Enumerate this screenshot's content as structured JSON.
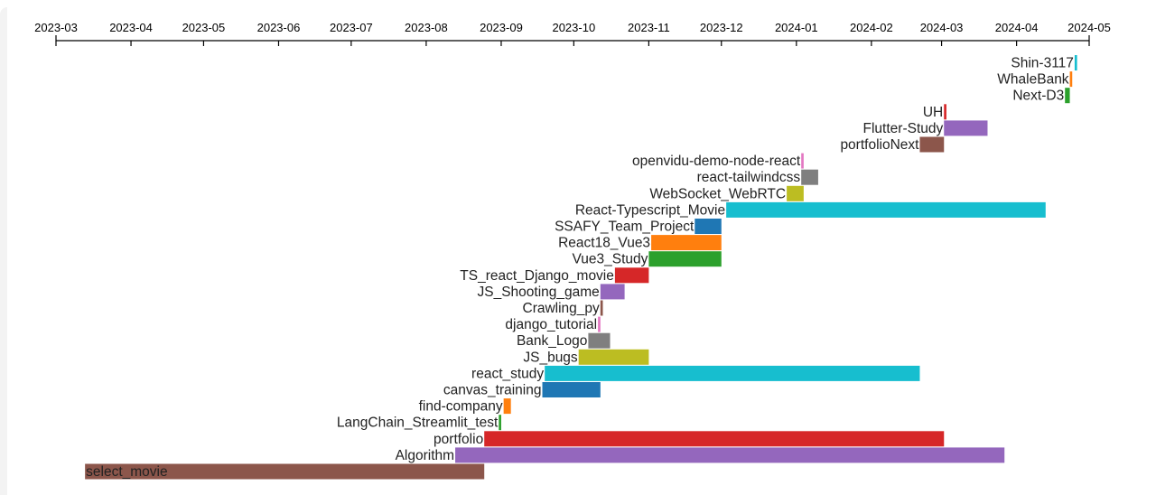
{
  "chart_data": {
    "type": "timeline",
    "x_axis": {
      "position": "top",
      "range": [
        "2023-03",
        "2024-05"
      ],
      "tick_labels": [
        "2023-03",
        "2023-04",
        "2023-05",
        "2023-06",
        "2023-07",
        "2023-08",
        "2023-09",
        "2023-10",
        "2023-11",
        "2023-12",
        "2024-01",
        "2024-02",
        "2024-03",
        "2024-04",
        "2024-05"
      ]
    },
    "grid": false,
    "legend": "none",
    "series": [
      {
        "name": "Shin-3117",
        "start": "2024-04-25",
        "end": "2024-04-26",
        "color": "#17becf"
      },
      {
        "name": "WhaleBank",
        "start": "2024-04-23",
        "end": "2024-04-24",
        "color": "#ff7f0e"
      },
      {
        "name": "Next-D3",
        "start": "2024-04-21",
        "end": "2024-04-23",
        "color": "#2ca02c"
      },
      {
        "name": "UH",
        "start": "2024-03-02",
        "end": "2024-03-03",
        "color": "#d62728"
      },
      {
        "name": "Flutter-Study",
        "start": "2024-03-02",
        "end": "2024-03-20",
        "color": "#9467bd"
      },
      {
        "name": "portfolioNext",
        "start": "2024-02-21",
        "end": "2024-03-02",
        "color": "#8c564b"
      },
      {
        "name": "openvidu-demo-node-react",
        "start": "2024-01-03",
        "end": "2024-01-04",
        "color": "#e377c2"
      },
      {
        "name": "react-tailwindcss",
        "start": "2024-01-03",
        "end": "2024-01-10",
        "color": "#7f7f7f"
      },
      {
        "name": "WebSocket_WebRTC",
        "start": "2023-12-28",
        "end": "2024-01-04",
        "color": "#bcbd22"
      },
      {
        "name": "React-Typescript_Movie",
        "start": "2023-12-03",
        "end": "2024-04-13",
        "color": "#17becf"
      },
      {
        "name": "SSAFY_Team_Project",
        "start": "2023-11-20",
        "end": "2023-12-01",
        "color": "#1f77b4"
      },
      {
        "name": "React18_Vue3",
        "start": "2023-11-02",
        "end": "2023-12-01",
        "color": "#ff7f0e"
      },
      {
        "name": "Vue3_Study",
        "start": "2023-11-01",
        "end": "2023-12-01",
        "color": "#2ca02c"
      },
      {
        "name": "TS_react_Django_movie",
        "start": "2023-10-18",
        "end": "2023-11-01",
        "color": "#d62728"
      },
      {
        "name": "JS_Shooting_game",
        "start": "2023-10-12",
        "end": "2023-10-22",
        "color": "#9467bd"
      },
      {
        "name": "Crawling_py",
        "start": "2023-10-12",
        "end": "2023-10-13",
        "color": "#8c564b"
      },
      {
        "name": "django_tutorial",
        "start": "2023-10-11",
        "end": "2023-10-12",
        "color": "#e377c2"
      },
      {
        "name": "Bank_Logo",
        "start": "2023-10-07",
        "end": "2023-10-16",
        "color": "#7f7f7f"
      },
      {
        "name": "JS_bugs",
        "start": "2023-10-03",
        "end": "2023-11-01",
        "color": "#bcbd22"
      },
      {
        "name": "react_study",
        "start": "2023-09-19",
        "end": "2024-02-21",
        "color": "#17becf"
      },
      {
        "name": "canvas_training",
        "start": "2023-09-18",
        "end": "2023-10-12",
        "color": "#1f77b4"
      },
      {
        "name": "find-company",
        "start": "2023-09-02",
        "end": "2023-09-05",
        "color": "#ff7f0e"
      },
      {
        "name": "LangChain_Streamlit_test",
        "start": "2023-08-31",
        "end": "2023-09-01",
        "color": "#2ca02c"
      },
      {
        "name": "portfolio",
        "start": "2023-08-25",
        "end": "2024-03-02",
        "color": "#d62728"
      },
      {
        "name": "Algorithm",
        "start": "2023-08-13",
        "end": "2024-03-27",
        "color": "#9467bd"
      },
      {
        "name": "select_movie",
        "start": "2023-03-13",
        "end": "2023-08-25",
        "color": "#8c564b"
      }
    ]
  }
}
